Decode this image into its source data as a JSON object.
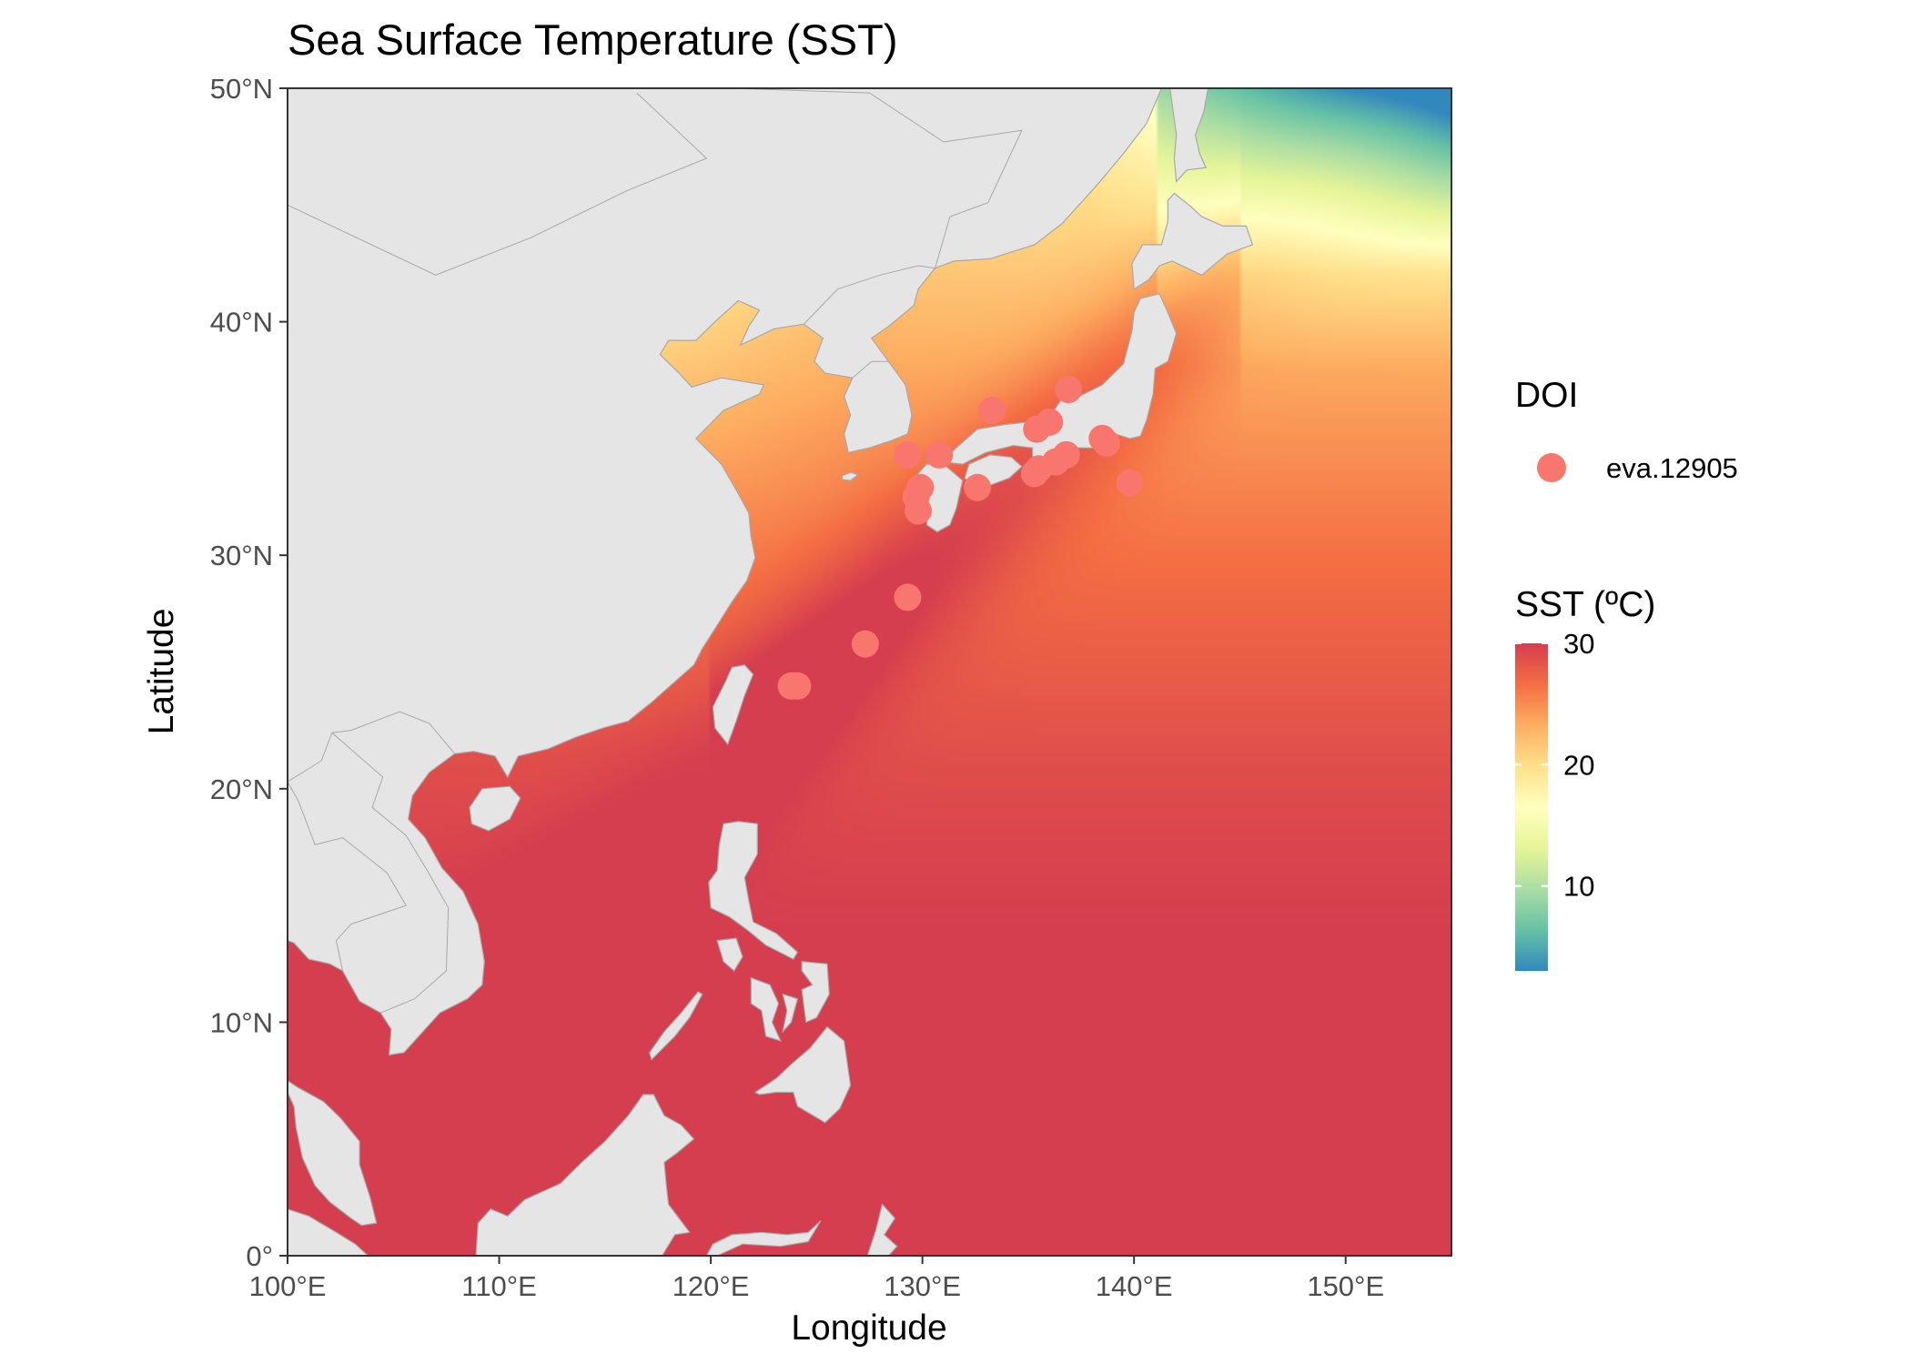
{
  "title": "Sea Surface Temperature (SST)",
  "x_axis": {
    "title": "Longitude",
    "range": [
      100,
      155
    ],
    "ticks": [
      100,
      110,
      120,
      130,
      140,
      150
    ],
    "tick_labels": [
      "100°E",
      "110°E",
      "120°E",
      "130°E",
      "140°E",
      "150°E"
    ]
  },
  "y_axis": {
    "title": "Latitude",
    "range": [
      0,
      50
    ],
    "ticks": [
      0,
      10,
      20,
      30,
      40,
      50
    ],
    "tick_labels": [
      "0°",
      "10°N",
      "20°N",
      "30°N",
      "40°N",
      "50°N"
    ]
  },
  "legend_doi": {
    "title": "DOI",
    "entries": [
      {
        "label": "eva.12905",
        "color": "#F8766D"
      }
    ]
  },
  "legend_sst": {
    "title": "SST (ºC)",
    "breaks": [
      10,
      20,
      30
    ],
    "break_labels": [
      "10",
      "20",
      "30"
    ],
    "range": [
      3,
      30
    ],
    "palette": [
      "#3288BD",
      "#66C2A5",
      "#ABDDA4",
      "#E6F598",
      "#FFFFBF",
      "#FEE08B",
      "#FDAE61",
      "#F46D43",
      "#D53E4F"
    ]
  },
  "colors": {
    "land": "#e5e5e5",
    "coastline": "#a8a8a8",
    "panel_border": "#333333",
    "point": "#F8766D"
  },
  "chart_data": {
    "type": "scatter",
    "xlabel": "Longitude",
    "ylabel": "Latitude",
    "xlim": [
      100,
      155
    ],
    "ylim": [
      0,
      50
    ],
    "series": [
      {
        "name": "eva.12905",
        "points": [
          {
            "lon": 136.9,
            "lat": 37.1
          },
          {
            "lon": 133.3,
            "lat": 36.2
          },
          {
            "lon": 136.0,
            "lat": 35.7
          },
          {
            "lon": 135.4,
            "lat": 35.4
          },
          {
            "lon": 138.5,
            "lat": 35.0
          },
          {
            "lon": 138.7,
            "lat": 34.8
          },
          {
            "lon": 129.3,
            "lat": 34.3
          },
          {
            "lon": 130.8,
            "lat": 34.3
          },
          {
            "lon": 136.8,
            "lat": 34.3
          },
          {
            "lon": 136.3,
            "lat": 34.0
          },
          {
            "lon": 135.5,
            "lat": 33.7
          },
          {
            "lon": 135.3,
            "lat": 33.5
          },
          {
            "lon": 139.8,
            "lat": 33.1
          },
          {
            "lon": 129.9,
            "lat": 32.9
          },
          {
            "lon": 132.6,
            "lat": 32.9
          },
          {
            "lon": 129.7,
            "lat": 32.5
          },
          {
            "lon": 129.8,
            "lat": 31.9
          },
          {
            "lon": 129.3,
            "lat": 28.2
          },
          {
            "lon": 127.3,
            "lat": 26.2
          },
          {
            "lon": 124.1,
            "lat": 24.4
          },
          {
            "lon": 123.8,
            "lat": 24.4
          }
        ]
      }
    ],
    "sst_scale": {
      "min": 3,
      "max": 30,
      "breaks": [
        10,
        20,
        30
      ]
    }
  }
}
